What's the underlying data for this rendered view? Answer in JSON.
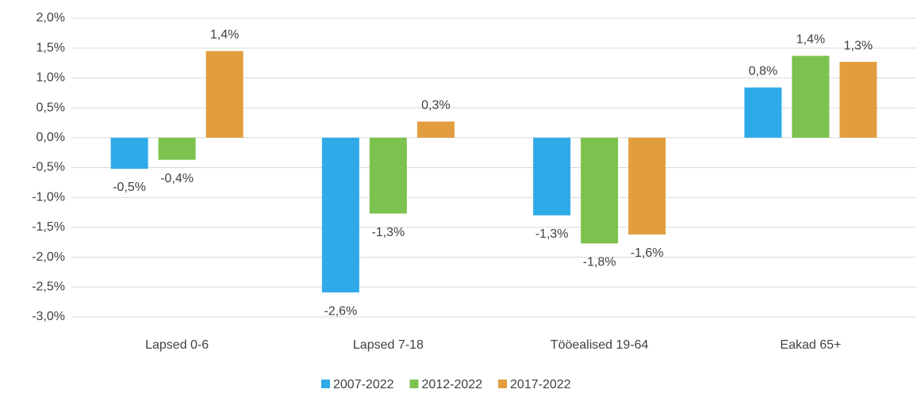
{
  "chart_data": {
    "type": "bar",
    "categories": [
      "Lapsed 0-6",
      "Lapsed 7-18",
      "Tööealised 19-64",
      "Eakad 65+"
    ],
    "series": [
      {
        "name": "2007-2022",
        "color": "#2eaae9",
        "values": [
          -0.52,
          -2.59,
          -1.3,
          0.84
        ],
        "value_labels": [
          "-0,5%",
          "-2,6%",
          "-1,3%",
          "0,8%"
        ]
      },
      {
        "name": "2012-2022",
        "color": "#7cc24e",
        "values": [
          -0.37,
          -1.27,
          -1.77,
          1.37
        ],
        "value_labels": [
          "-0,4%",
          "-1,3%",
          "-1,8%",
          "1,4%"
        ]
      },
      {
        "name": "2017-2022",
        "color": "#e29e3e",
        "values": [
          1.45,
          0.27,
          -1.62,
          1.27
        ],
        "value_labels": [
          "1,4%",
          "0,3%",
          "-1,6%",
          "1,3%"
        ]
      }
    ],
    "ylim": [
      -3.0,
      2.0
    ],
    "yticks": [
      {
        "value": -3.0,
        "label": "-3,0%"
      },
      {
        "value": -2.5,
        "label": "-2,5%"
      },
      {
        "value": -2.0,
        "label": "-2,0%"
      },
      {
        "value": -1.5,
        "label": "-1,5%"
      },
      {
        "value": -1.0,
        "label": "-1,0%"
      },
      {
        "value": -0.5,
        "label": "-0,5%"
      },
      {
        "value": 0.0,
        "label": "0,0%"
      },
      {
        "value": 0.5,
        "label": "0,5%"
      },
      {
        "value": 1.0,
        "label": "1,0%"
      },
      {
        "value": 1.5,
        "label": "1,5%"
      },
      {
        "value": 2.0,
        "label": "2,0%"
      }
    ],
    "grid": true,
    "legend": "bottom"
  }
}
